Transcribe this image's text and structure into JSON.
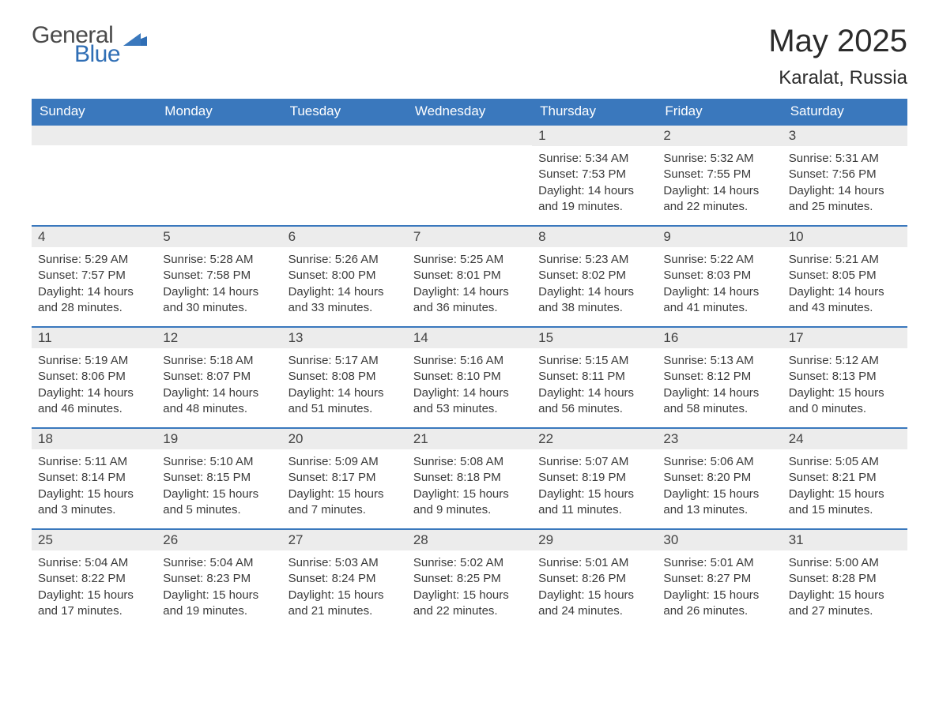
{
  "logo": {
    "text1": "General",
    "text2": "Blue",
    "icon_color": "#2f6eb5"
  },
  "title": "May 2025",
  "location": "Karalat, Russia",
  "colors": {
    "header_bg": "#3a78bd",
    "header_text": "#ffffff",
    "row_stripe": "#ececec",
    "row_border": "#3a78bd",
    "body_text": "#3a3a3a"
  },
  "weekdays": [
    "Sunday",
    "Monday",
    "Tuesday",
    "Wednesday",
    "Thursday",
    "Friday",
    "Saturday"
  ],
  "weeks": [
    [
      null,
      null,
      null,
      null,
      {
        "n": "1",
        "sunrise": "5:34 AM",
        "sunset": "7:53 PM",
        "daylight": "14 hours and 19 minutes."
      },
      {
        "n": "2",
        "sunrise": "5:32 AM",
        "sunset": "7:55 PM",
        "daylight": "14 hours and 22 minutes."
      },
      {
        "n": "3",
        "sunrise": "5:31 AM",
        "sunset": "7:56 PM",
        "daylight": "14 hours and 25 minutes."
      }
    ],
    [
      {
        "n": "4",
        "sunrise": "5:29 AM",
        "sunset": "7:57 PM",
        "daylight": "14 hours and 28 minutes."
      },
      {
        "n": "5",
        "sunrise": "5:28 AM",
        "sunset": "7:58 PM",
        "daylight": "14 hours and 30 minutes."
      },
      {
        "n": "6",
        "sunrise": "5:26 AM",
        "sunset": "8:00 PM",
        "daylight": "14 hours and 33 minutes."
      },
      {
        "n": "7",
        "sunrise": "5:25 AM",
        "sunset": "8:01 PM",
        "daylight": "14 hours and 36 minutes."
      },
      {
        "n": "8",
        "sunrise": "5:23 AM",
        "sunset": "8:02 PM",
        "daylight": "14 hours and 38 minutes."
      },
      {
        "n": "9",
        "sunrise": "5:22 AM",
        "sunset": "8:03 PM",
        "daylight": "14 hours and 41 minutes."
      },
      {
        "n": "10",
        "sunrise": "5:21 AM",
        "sunset": "8:05 PM",
        "daylight": "14 hours and 43 minutes."
      }
    ],
    [
      {
        "n": "11",
        "sunrise": "5:19 AM",
        "sunset": "8:06 PM",
        "daylight": "14 hours and 46 minutes."
      },
      {
        "n": "12",
        "sunrise": "5:18 AM",
        "sunset": "8:07 PM",
        "daylight": "14 hours and 48 minutes."
      },
      {
        "n": "13",
        "sunrise": "5:17 AM",
        "sunset": "8:08 PM",
        "daylight": "14 hours and 51 minutes."
      },
      {
        "n": "14",
        "sunrise": "5:16 AM",
        "sunset": "8:10 PM",
        "daylight": "14 hours and 53 minutes."
      },
      {
        "n": "15",
        "sunrise": "5:15 AM",
        "sunset": "8:11 PM",
        "daylight": "14 hours and 56 minutes."
      },
      {
        "n": "16",
        "sunrise": "5:13 AM",
        "sunset": "8:12 PM",
        "daylight": "14 hours and 58 minutes."
      },
      {
        "n": "17",
        "sunrise": "5:12 AM",
        "sunset": "8:13 PM",
        "daylight": "15 hours and 0 minutes."
      }
    ],
    [
      {
        "n": "18",
        "sunrise": "5:11 AM",
        "sunset": "8:14 PM",
        "daylight": "15 hours and 3 minutes."
      },
      {
        "n": "19",
        "sunrise": "5:10 AM",
        "sunset": "8:15 PM",
        "daylight": "15 hours and 5 minutes."
      },
      {
        "n": "20",
        "sunrise": "5:09 AM",
        "sunset": "8:17 PM",
        "daylight": "15 hours and 7 minutes."
      },
      {
        "n": "21",
        "sunrise": "5:08 AM",
        "sunset": "8:18 PM",
        "daylight": "15 hours and 9 minutes."
      },
      {
        "n": "22",
        "sunrise": "5:07 AM",
        "sunset": "8:19 PM",
        "daylight": "15 hours and 11 minutes."
      },
      {
        "n": "23",
        "sunrise": "5:06 AM",
        "sunset": "8:20 PM",
        "daylight": "15 hours and 13 minutes."
      },
      {
        "n": "24",
        "sunrise": "5:05 AM",
        "sunset": "8:21 PM",
        "daylight": "15 hours and 15 minutes."
      }
    ],
    [
      {
        "n": "25",
        "sunrise": "5:04 AM",
        "sunset": "8:22 PM",
        "daylight": "15 hours and 17 minutes."
      },
      {
        "n": "26",
        "sunrise": "5:04 AM",
        "sunset": "8:23 PM",
        "daylight": "15 hours and 19 minutes."
      },
      {
        "n": "27",
        "sunrise": "5:03 AM",
        "sunset": "8:24 PM",
        "daylight": "15 hours and 21 minutes."
      },
      {
        "n": "28",
        "sunrise": "5:02 AM",
        "sunset": "8:25 PM",
        "daylight": "15 hours and 22 minutes."
      },
      {
        "n": "29",
        "sunrise": "5:01 AM",
        "sunset": "8:26 PM",
        "daylight": "15 hours and 24 minutes."
      },
      {
        "n": "30",
        "sunrise": "5:01 AM",
        "sunset": "8:27 PM",
        "daylight": "15 hours and 26 minutes."
      },
      {
        "n": "31",
        "sunrise": "5:00 AM",
        "sunset": "8:28 PM",
        "daylight": "15 hours and 27 minutes."
      }
    ]
  ],
  "labels": {
    "sunrise": "Sunrise: ",
    "sunset": "Sunset: ",
    "daylight": "Daylight: "
  }
}
